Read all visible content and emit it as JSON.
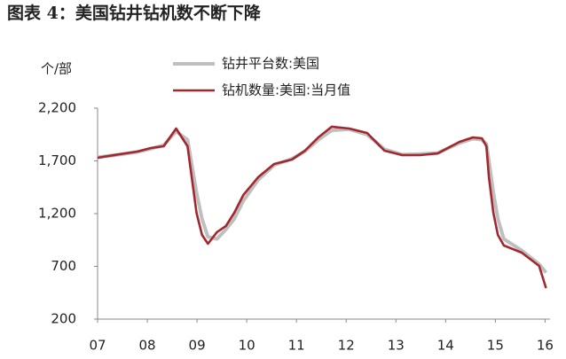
{
  "chart_data": {
    "type": "line",
    "title": "图表 4：美国钻井钻机数不断下降",
    "y_label": "个/部",
    "x": [
      7.0,
      7.44,
      7.8,
      8.07,
      8.33,
      8.58,
      8.81,
      8.99,
      9.1,
      9.22,
      9.4,
      9.58,
      9.75,
      9.93,
      10.23,
      10.55,
      10.91,
      11.17,
      11.44,
      11.71,
      12.06,
      12.42,
      12.77,
      13.13,
      13.48,
      13.84,
      14.28,
      14.55,
      14.73,
      14.82,
      14.87,
      14.96,
      15.05,
      15.17,
      15.53,
      15.88,
      16.02
    ],
    "series": [
      {
        "name": "钻井平台数:美国",
        "color": "#bfbfbf",
        "values": [
          1735,
          1760,
          1785,
          1815,
          1850,
          1980,
          1900,
          1400,
          1150,
          980,
          960,
          1050,
          1150,
          1320,
          1520,
          1660,
          1720,
          1790,
          1900,
          1990,
          2000,
          1950,
          1810,
          1760,
          1765,
          1775,
          1870,
          1910,
          1900,
          1860,
          1700,
          1400,
          1150,
          960,
          850,
          720,
          640
        ]
      },
      {
        "name": "钻机数量:美国:当月值",
        "color": "#a0282e",
        "values": [
          1729,
          1763,
          1788,
          1822,
          1839,
          2007,
          1839,
          1208,
          998,
          914,
          1024,
          1082,
          1208,
          1376,
          1545,
          1671,
          1713,
          1797,
          1923,
          2024,
          2007,
          1965,
          1797,
          1755,
          1755,
          1771,
          1881,
          1923,
          1914,
          1839,
          1545,
          1208,
          998,
          898,
          830,
          704,
          494
        ]
      }
    ],
    "xlim": [
      7,
      16.1
    ],
    "xticks": [
      {
        "value": 7,
        "label": "07"
      },
      {
        "value": 8,
        "label": "08"
      },
      {
        "value": 9,
        "label": "09"
      },
      10,
      11,
      12,
      13,
      14,
      15,
      16
    ],
    "ylim": [
      200,
      2200
    ],
    "yticks": [
      {
        "value": 2200,
        "label": "2,200"
      },
      {
        "value": 1700,
        "label": "1,700"
      },
      {
        "value": 1200,
        "label": "1,200"
      },
      700,
      200
    ],
    "grid": false
  }
}
